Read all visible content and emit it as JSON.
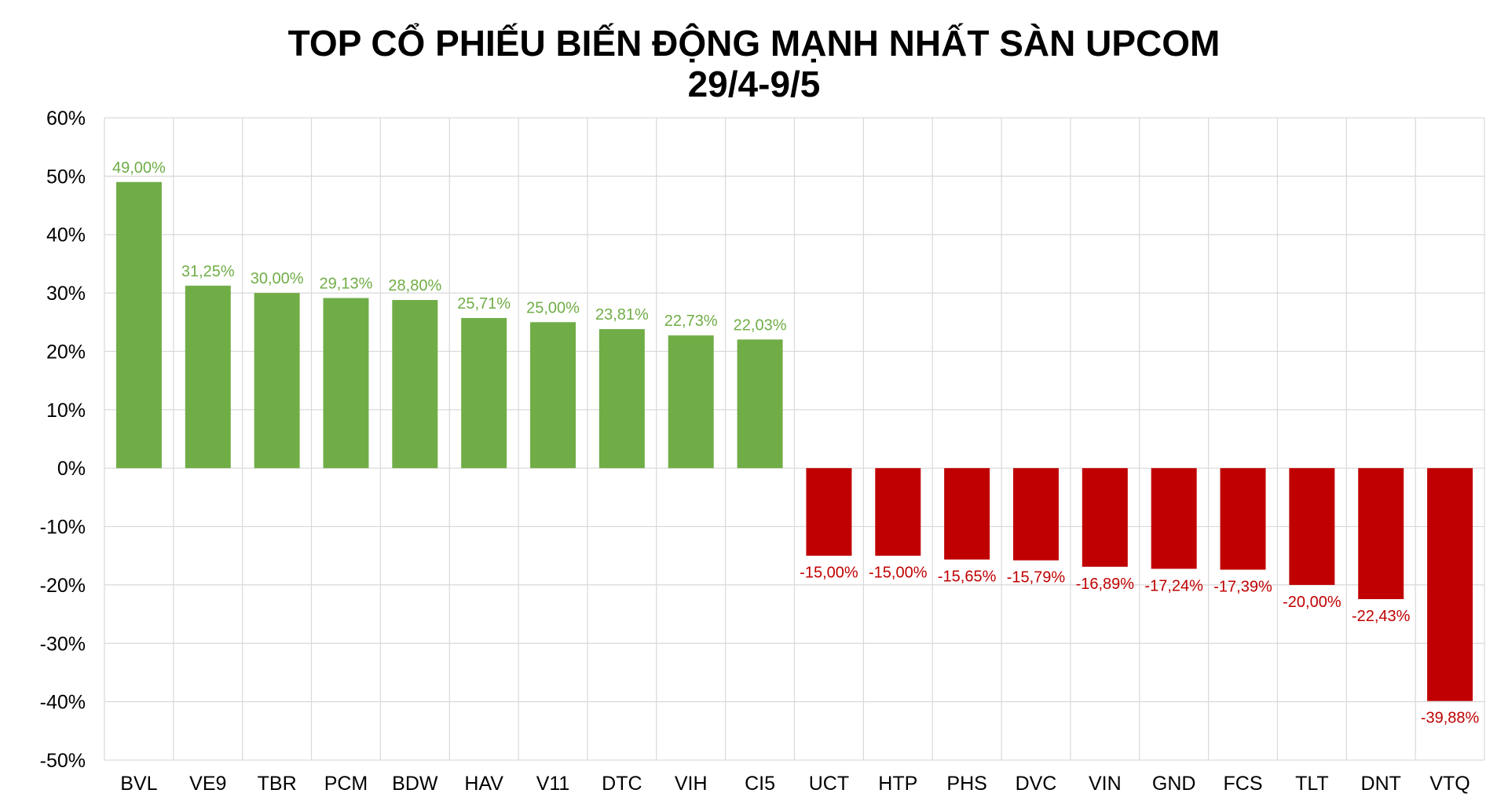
{
  "chart_data": {
    "type": "bar",
    "title": "TOP CỔ PHIẾU BIẾN ĐỘNG MẠNH NHẤT SÀN UPCOM",
    "subtitle": "29/4-9/5",
    "categories": [
      "BVL",
      "VE9",
      "TBR",
      "PCM",
      "BDW",
      "HAV",
      "V11",
      "DTC",
      "VIH",
      "CI5",
      "UCT",
      "HTP",
      "PHS",
      "DVC",
      "VIN",
      "GND",
      "FCS",
      "TLT",
      "DNT",
      "VTQ"
    ],
    "values": [
      49.0,
      31.25,
      30.0,
      29.13,
      28.8,
      25.71,
      25.0,
      23.81,
      22.73,
      22.03,
      -15.0,
      -15.0,
      -15.65,
      -15.79,
      -16.89,
      -17.24,
      -17.39,
      -20.0,
      -22.43,
      -39.88
    ],
    "data_labels": [
      "49,00%",
      "31,25%",
      "30,00%",
      "29,13%",
      "28,80%",
      "25,71%",
      "25,00%",
      "23,81%",
      "22,73%",
      "22,03%",
      "-15,00%",
      "-15,00%",
      "-15,65%",
      "-15,79%",
      "-16,89%",
      "-17,24%",
      "-17,39%",
      "-20,00%",
      "-22,43%",
      "-39,88%"
    ],
    "y_ticks": [
      60,
      50,
      40,
      30,
      20,
      10,
      0,
      -10,
      -20,
      -30,
      -40,
      -50
    ],
    "y_tick_labels": [
      "60%",
      "50%",
      "40%",
      "30%",
      "20%",
      "10%",
      "0%",
      "-10%",
      "-20%",
      "-30%",
      "-40%",
      "-50%"
    ],
    "ylim": [
      -50,
      60
    ],
    "xlabel": "",
    "ylabel": "",
    "grid": true,
    "legend": "none",
    "colors": {
      "positive": "#70AD47",
      "negative": "#C00000",
      "grid": "#D9D9D9",
      "text": "#000000"
    }
  }
}
